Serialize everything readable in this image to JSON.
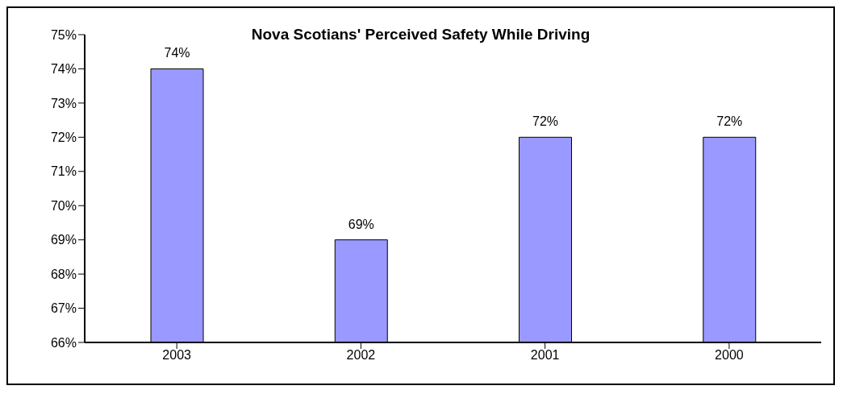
{
  "chart_data": {
    "type": "bar",
    "title": "Nova Scotians' Perceived Safety While Driving",
    "categories": [
      "2003",
      "2002",
      "2001",
      "2000"
    ],
    "values": [
      74,
      69,
      72,
      72
    ],
    "value_labels": [
      "74%",
      "69%",
      "72%",
      "72%"
    ],
    "color": "#9999ff",
    "ylim": [
      66,
      75
    ],
    "yticks": [
      {
        "value": 66,
        "label": "66%"
      },
      {
        "value": 67,
        "label": "67%"
      },
      {
        "value": 68,
        "label": "68%"
      },
      {
        "value": 69,
        "label": "69%"
      },
      {
        "value": 70,
        "label": "70%"
      },
      {
        "value": 71,
        "label": "71%"
      },
      {
        "value": 72,
        "label": "72%"
      },
      {
        "value": 73,
        "label": "73%"
      },
      {
        "value": 74,
        "label": "74%"
      },
      {
        "value": 75,
        "label": "75%"
      }
    ],
    "grid": false,
    "legend": false
  }
}
